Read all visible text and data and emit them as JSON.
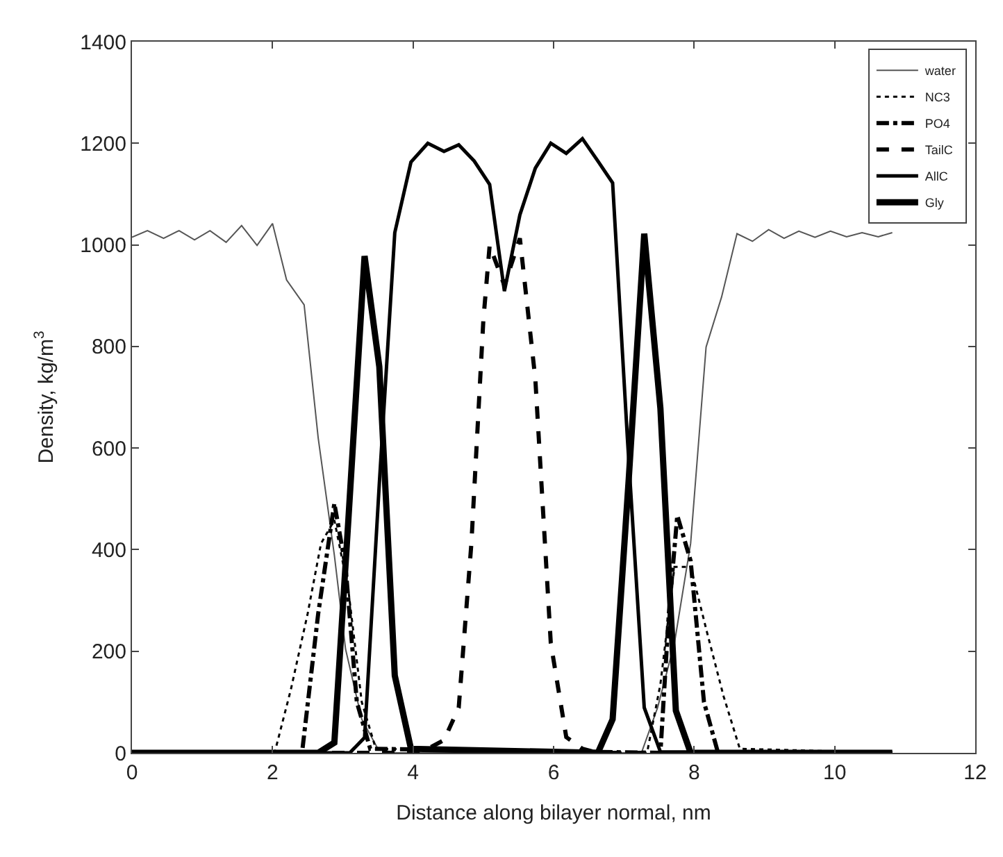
{
  "chart_data": {
    "type": "line",
    "xlabel": "Distance along bilayer normal, nm",
    "ylabel": "Density, kg/m$^{3}$",
    "xlim": [
      0,
      12
    ],
    "xticks": [
      0,
      2,
      4,
      6,
      8,
      10,
      12
    ],
    "ylim": [
      0,
      1400
    ],
    "yticks": [
      0,
      200,
      400,
      600,
      800,
      1000,
      1200,
      1400
    ],
    "legend": "top right",
    "marker": "none",
    "series": [
      {
        "name": "water",
        "color": "#555555",
        "line_style": "solid",
        "x": [
          0,
          0.22,
          0.45,
          0.67,
          0.89,
          1.11,
          1.34,
          1.56,
          1.78,
          2.0,
          2.2,
          2.45,
          2.65,
          2.88,
          3.04,
          3.27,
          3.5,
          3.74,
          7.05,
          7.25,
          7.48,
          7.72,
          7.95,
          8.17,
          8.39,
          8.61,
          8.83,
          9.06,
          9.28,
          9.49,
          9.72,
          9.94,
          10.17,
          10.39,
          10.62,
          10.82
        ],
        "values": [
          1015,
          1028,
          1013,
          1028,
          1010,
          1028,
          1005,
          1038,
          999,
          1042,
          931,
          882,
          620,
          389,
          204,
          66,
          8,
          0,
          0,
          0,
          89,
          216,
          412,
          799,
          897,
          1022,
          1007,
          1030,
          1013,
          1027,
          1015,
          1027,
          1016,
          1024,
          1016,
          1024
        ]
      },
      {
        "name": "NC3",
        "color": "#000000",
        "line_style": "dotted",
        "x": [
          0,
          2.03,
          2.26,
          2.5,
          2.69,
          2.88,
          3.08,
          3.27,
          3.47,
          7.33,
          7.52,
          7.72,
          7.95,
          8.18,
          8.42,
          8.65,
          10.82
        ],
        "values": [
          0,
          0,
          124,
          274,
          412,
          458,
          320,
          100,
          8,
          0,
          135,
          366,
          366,
          239,
          111,
          8,
          0
        ]
      },
      {
        "name": "PO4",
        "color": "#000000",
        "line_style": "dashdot",
        "x": [
          0,
          2.42,
          2.65,
          2.88,
          3.04,
          3.2,
          3.39,
          7.52,
          7.64,
          7.76,
          7.95,
          8.14,
          8.34,
          10.82
        ],
        "values": [
          0,
          0,
          274,
          491,
          366,
          100,
          8,
          0,
          274,
          467,
          378,
          100,
          0,
          0
        ]
      },
      {
        "name": "TailC",
        "color": "#000000",
        "line_style": "dashed",
        "x": [
          0,
          4.0,
          4.21,
          4.44,
          4.65,
          4.83,
          5.0,
          5.09,
          5.3,
          5.52,
          5.74,
          5.96,
          6.18,
          6.41,
          6.63,
          10.82
        ],
        "values": [
          0,
          0,
          8,
          25,
          89,
          412,
          851,
          999,
          920,
          1013,
          736,
          216,
          31,
          8,
          0,
          0
        ]
      },
      {
        "name": "AllC",
        "color": "#000000",
        "line_style": "solid",
        "x": [
          0,
          3.1,
          3.31,
          3.52,
          3.74,
          3.97,
          4.21,
          4.44,
          4.65,
          4.87,
          5.09,
          5.3,
          5.52,
          5.74,
          5.96,
          6.18,
          6.41,
          6.63,
          6.84,
          7.05,
          7.29,
          7.52,
          10.82
        ],
        "values": [
          0,
          0,
          30,
          530,
          1024,
          1163,
          1200,
          1184,
          1197,
          1165,
          1119,
          909,
          1059,
          1151,
          1200,
          1180,
          1209,
          1165,
          1122,
          620,
          89,
          2,
          0
        ]
      },
      {
        "name": "Gly",
        "color": "#000000",
        "line_style": "solid",
        "x": [
          0,
          2.65,
          2.88,
          3.08,
          3.31,
          3.52,
          3.74,
          3.97,
          6.63,
          6.84,
          7.07,
          7.29,
          7.52,
          7.74,
          7.95,
          10.82
        ],
        "values": [
          0,
          0,
          20,
          460,
          978,
          760,
          152,
          8,
          0,
          66,
          540,
          1022,
          678,
          83,
          0,
          0
        ]
      }
    ]
  }
}
